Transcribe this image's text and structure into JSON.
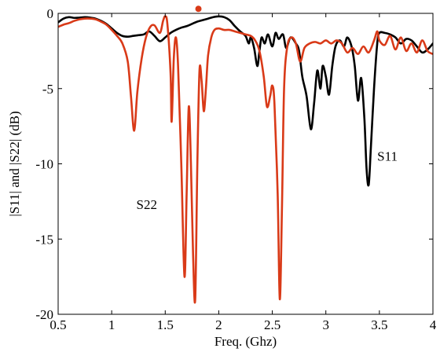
{
  "chart_data": {
    "type": "line",
    "title": "",
    "xlabel": "Freq. (Ghz)",
    "ylabel": "|S11| and |S22| (dB)",
    "xlim": [
      0.5,
      4
    ],
    "ylim": [
      -20,
      0
    ],
    "xticks": [
      0.5,
      1,
      1.5,
      2,
      2.5,
      3,
      3.5,
      4
    ],
    "yticks": [
      0,
      -5,
      -10,
      -15,
      -20
    ],
    "xtick_labels": [
      "0.5",
      "1",
      "1.5",
      "2",
      "2.5",
      "3",
      "3.5",
      "4"
    ],
    "ytick_labels": [
      "0",
      "-5",
      "-10",
      "-15",
      "-20"
    ],
    "grid": false,
    "series": [
      {
        "name": "S11",
        "color": "#000000",
        "points": [
          [
            0.5,
            -0.6
          ],
          [
            0.55,
            -0.35
          ],
          [
            0.6,
            -0.25
          ],
          [
            0.65,
            -0.3
          ],
          [
            0.7,
            -0.28
          ],
          [
            0.75,
            -0.25
          ],
          [
            0.8,
            -0.28
          ],
          [
            0.85,
            -0.35
          ],
          [
            0.9,
            -0.5
          ],
          [
            0.95,
            -0.7
          ],
          [
            1.0,
            -1.0
          ],
          [
            1.05,
            -1.3
          ],
          [
            1.1,
            -1.5
          ],
          [
            1.15,
            -1.55
          ],
          [
            1.2,
            -1.5
          ],
          [
            1.25,
            -1.45
          ],
          [
            1.3,
            -1.4
          ],
          [
            1.35,
            -1.2
          ],
          [
            1.4,
            -1.5
          ],
          [
            1.45,
            -1.85
          ],
          [
            1.5,
            -1.6
          ],
          [
            1.55,
            -1.3
          ],
          [
            1.6,
            -1.1
          ],
          [
            1.65,
            -0.95
          ],
          [
            1.7,
            -0.85
          ],
          [
            1.75,
            -0.7
          ],
          [
            1.8,
            -0.55
          ],
          [
            1.85,
            -0.45
          ],
          [
            1.9,
            -0.35
          ],
          [
            1.95,
            -0.25
          ],
          [
            2.0,
            -0.2
          ],
          [
            2.05,
            -0.25
          ],
          [
            2.1,
            -0.45
          ],
          [
            2.15,
            -0.85
          ],
          [
            2.2,
            -1.2
          ],
          [
            2.25,
            -1.5
          ],
          [
            2.28,
            -2.0
          ],
          [
            2.3,
            -1.6
          ],
          [
            2.33,
            -2.3
          ],
          [
            2.36,
            -3.5
          ],
          [
            2.38,
            -2.5
          ],
          [
            2.4,
            -1.6
          ],
          [
            2.43,
            -2.0
          ],
          [
            2.46,
            -1.4
          ],
          [
            2.5,
            -2.2
          ],
          [
            2.53,
            -1.3
          ],
          [
            2.56,
            -1.7
          ],
          [
            2.6,
            -1.4
          ],
          [
            2.63,
            -2.3
          ],
          [
            2.67,
            -1.6
          ],
          [
            2.72,
            -2.0
          ],
          [
            2.75,
            -2.5
          ],
          [
            2.78,
            -4.2
          ],
          [
            2.82,
            -5.5
          ],
          [
            2.86,
            -7.7
          ],
          [
            2.89,
            -6.0
          ],
          [
            2.92,
            -3.8
          ],
          [
            2.95,
            -5.0
          ],
          [
            2.97,
            -3.5
          ],
          [
            3.0,
            -4.2
          ],
          [
            3.03,
            -5.4
          ],
          [
            3.06,
            -3.5
          ],
          [
            3.09,
            -2.2
          ],
          [
            3.13,
            -1.8
          ],
          [
            3.17,
            -2.2
          ],
          [
            3.2,
            -1.6
          ],
          [
            3.24,
            -2.2
          ],
          [
            3.27,
            -3.5
          ],
          [
            3.3,
            -5.8
          ],
          [
            3.33,
            -4.3
          ],
          [
            3.36,
            -7.0
          ],
          [
            3.38,
            -10.3
          ],
          [
            3.4,
            -11.4
          ],
          [
            3.42,
            -9.0
          ],
          [
            3.45,
            -5.0
          ],
          [
            3.48,
            -2.0
          ],
          [
            3.5,
            -1.3
          ],
          [
            3.55,
            -1.3
          ],
          [
            3.6,
            -1.4
          ],
          [
            3.65,
            -1.6
          ],
          [
            3.7,
            -2.0
          ],
          [
            3.75,
            -1.7
          ],
          [
            3.8,
            -1.8
          ],
          [
            3.85,
            -2.2
          ],
          [
            3.9,
            -2.6
          ],
          [
            3.95,
            -2.4
          ],
          [
            4.0,
            -2.0
          ]
        ]
      },
      {
        "name": "S22",
        "color": "#d93a18",
        "points": [
          [
            0.5,
            -0.9
          ],
          [
            0.55,
            -0.75
          ],
          [
            0.6,
            -0.65
          ],
          [
            0.65,
            -0.5
          ],
          [
            0.7,
            -0.4
          ],
          [
            0.75,
            -0.35
          ],
          [
            0.8,
            -0.35
          ],
          [
            0.85,
            -0.4
          ],
          [
            0.9,
            -0.55
          ],
          [
            0.95,
            -0.75
          ],
          [
            1.0,
            -1.1
          ],
          [
            1.05,
            -1.5
          ],
          [
            1.1,
            -2.0
          ],
          [
            1.15,
            -3.2
          ],
          [
            1.18,
            -5.5
          ],
          [
            1.21,
            -7.8
          ],
          [
            1.24,
            -5.2
          ],
          [
            1.28,
            -3.0
          ],
          [
            1.32,
            -1.6
          ],
          [
            1.36,
            -0.9
          ],
          [
            1.4,
            -0.8
          ],
          [
            1.45,
            -1.3
          ],
          [
            1.48,
            -0.5
          ],
          [
            1.5,
            -0.2
          ],
          [
            1.52,
            -0.7
          ],
          [
            1.55,
            -4.0
          ],
          [
            1.56,
            -7.2
          ],
          [
            1.58,
            -3.0
          ],
          [
            1.6,
            -1.6
          ],
          [
            1.62,
            -3.5
          ],
          [
            1.65,
            -10.0
          ],
          [
            1.68,
            -17.5
          ],
          [
            1.7,
            -12.0
          ],
          [
            1.72,
            -6.2
          ],
          [
            1.74,
            -10.0
          ],
          [
            1.76,
            -16.0
          ],
          [
            1.78,
            -19.0
          ],
          [
            1.8,
            -10.0
          ],
          [
            1.82,
            -3.8
          ],
          [
            1.84,
            -4.5
          ],
          [
            1.86,
            -6.5
          ],
          [
            1.88,
            -5.0
          ],
          [
            1.9,
            -2.8
          ],
          [
            1.93,
            -1.6
          ],
          [
            1.96,
            -1.1
          ],
          [
            2.0,
            -1.0
          ],
          [
            2.05,
            -1.1
          ],
          [
            2.1,
            -1.1
          ],
          [
            2.15,
            -1.2
          ],
          [
            2.2,
            -1.3
          ],
          [
            2.25,
            -1.4
          ],
          [
            2.3,
            -1.5
          ],
          [
            2.34,
            -1.8
          ],
          [
            2.38,
            -2.5
          ],
          [
            2.42,
            -4.2
          ],
          [
            2.45,
            -6.2
          ],
          [
            2.48,
            -5.5
          ],
          [
            2.5,
            -4.8
          ],
          [
            2.52,
            -6.0
          ],
          [
            2.55,
            -12.0
          ],
          [
            2.57,
            -19.0
          ],
          [
            2.59,
            -13.0
          ],
          [
            2.61,
            -5.0
          ],
          [
            2.64,
            -2.2
          ],
          [
            2.68,
            -1.6
          ],
          [
            2.72,
            -2.0
          ],
          [
            2.76,
            -3.2
          ],
          [
            2.8,
            -2.3
          ],
          [
            2.85,
            -2.0
          ],
          [
            2.9,
            -1.9
          ],
          [
            2.95,
            -2.0
          ],
          [
            3.0,
            -1.8
          ],
          [
            3.05,
            -2.0
          ],
          [
            3.1,
            -1.8
          ],
          [
            3.15,
            -2.0
          ],
          [
            3.2,
            -2.6
          ],
          [
            3.25,
            -2.3
          ],
          [
            3.3,
            -2.7
          ],
          [
            3.35,
            -2.2
          ],
          [
            3.4,
            -2.6
          ],
          [
            3.45,
            -1.8
          ],
          [
            3.48,
            -1.2
          ],
          [
            3.5,
            -1.8
          ],
          [
            3.55,
            -2.1
          ],
          [
            3.6,
            -1.5
          ],
          [
            3.65,
            -2.4
          ],
          [
            3.7,
            -1.6
          ],
          [
            3.75,
            -2.5
          ],
          [
            3.8,
            -2.0
          ],
          [
            3.85,
            -2.6
          ],
          [
            3.9,
            -1.8
          ],
          [
            3.95,
            -2.5
          ],
          [
            4.0,
            -2.7
          ]
        ]
      }
    ],
    "annotations": [
      {
        "text": "S11",
        "x": 3.48,
        "y": -9.8
      },
      {
        "text": "S22",
        "x": 1.23,
        "y": -13.0
      }
    ],
    "marker": {
      "x": 1.81,
      "y": 0.3,
      "color": "#d93a18"
    }
  }
}
